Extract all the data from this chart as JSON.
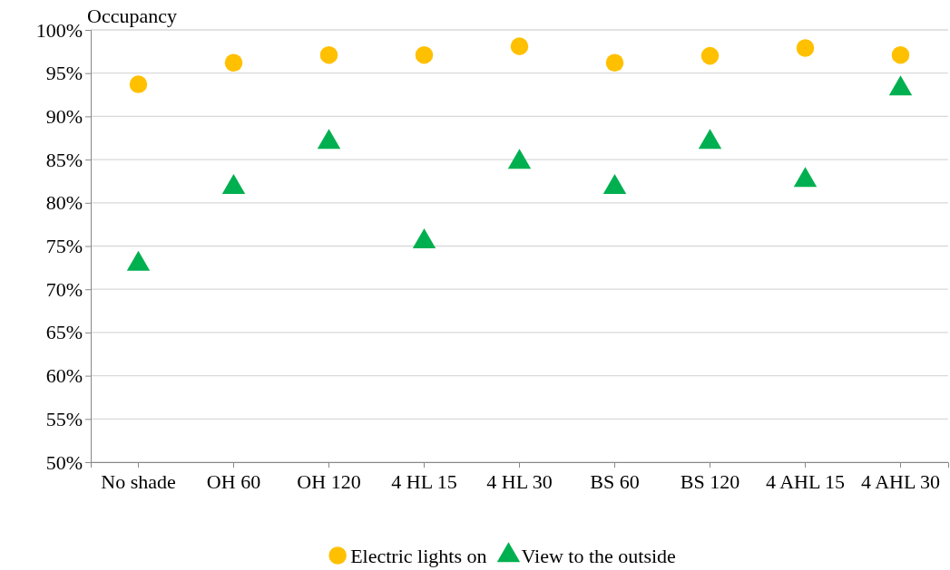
{
  "chart_data": {
    "type": "scatter",
    "ylabel": "Occupancy",
    "categories": [
      "No shade",
      "OH 60",
      "OH 120",
      "4 HL 15",
      "4 HL 30",
      "BS 60",
      "BS 120",
      "4 AHL 15",
      "4 AHL 30"
    ],
    "series": [
      {
        "name": "Electric lights on",
        "color": "#ffc000",
        "marker": "circle",
        "values": [
          93.7,
          96.2,
          97.1,
          97.1,
          98.1,
          96.2,
          97.0,
          97.9,
          97.1
        ]
      },
      {
        "name": "View to the outside",
        "color": "#00b050",
        "marker": "triangle",
        "values": [
          72.9,
          81.8,
          87.0,
          75.5,
          84.7,
          81.8,
          87.0,
          82.6,
          93.2
        ]
      }
    ],
    "ylim": [
      50,
      100
    ],
    "yticks": [
      {
        "value": 50,
        "label": "50%"
      },
      {
        "value": 55,
        "label": "55%"
      },
      {
        "value": 60,
        "label": "60%"
      },
      {
        "value": 65,
        "label": "65%"
      },
      {
        "value": 70,
        "label": "70%"
      },
      {
        "value": 75,
        "label": "75%"
      },
      {
        "value": 80,
        "label": "80%"
      },
      {
        "value": 85,
        "label": "85%"
      },
      {
        "value": 90,
        "label": "90%"
      },
      {
        "value": 95,
        "label": "95%"
      },
      {
        "value": 100,
        "label": "100%"
      }
    ],
    "grid": "y",
    "legend": "bottom"
  }
}
